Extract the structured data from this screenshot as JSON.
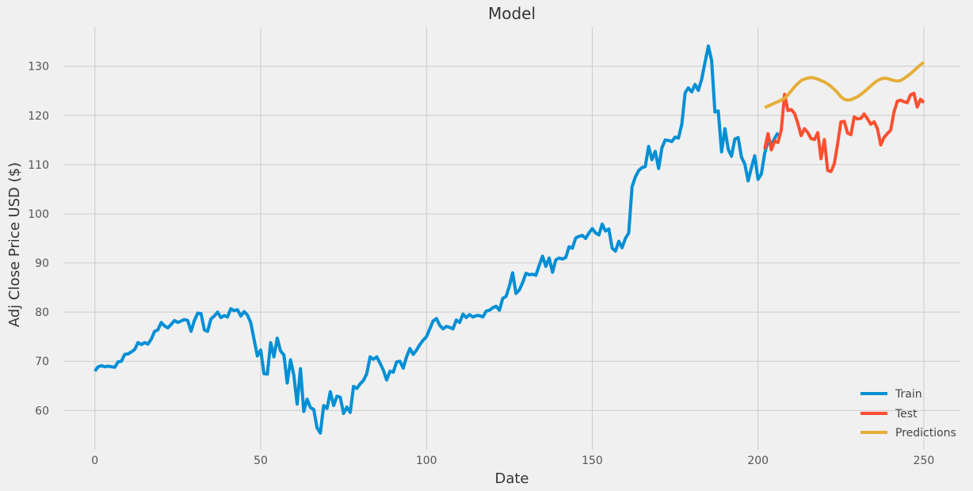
{
  "chart_data": {
    "type": "line",
    "title": "Model",
    "xlabel": "Date",
    "ylabel": "Adj Close Price USD ($)",
    "xlim": [
      -9.5,
      261
    ],
    "ylim": [
      52,
      138
    ],
    "x_ticks": [
      0,
      50,
      100,
      150,
      200,
      250
    ],
    "y_ticks": [
      60,
      70,
      80,
      90,
      100,
      110,
      120,
      130
    ],
    "x_tick_labels": [
      "0",
      "50",
      "100",
      "150",
      "200",
      "250"
    ],
    "y_tick_labels": [
      "60",
      "70",
      "80",
      "90",
      "100",
      "110",
      "120",
      "130"
    ],
    "grid": true,
    "legend_position": "bottom-right",
    "legend": [
      "Train",
      "Test",
      "Predictions"
    ],
    "series": [
      {
        "name": "Train",
        "color": "#008fd5",
        "x_start": 0,
        "values": [
          68.0,
          68.9,
          69.1,
          68.9,
          69.0,
          68.9,
          68.8,
          69.9,
          70.0,
          71.4,
          71.5,
          71.9,
          72.4,
          73.8,
          73.4,
          73.8,
          73.5,
          74.5,
          76.1,
          76.4,
          77.9,
          77.2,
          76.8,
          77.5,
          78.3,
          77.9,
          78.2,
          78.5,
          78.3,
          76.1,
          78.3,
          79.8,
          79.7,
          76.4,
          76.1,
          78.6,
          79.2,
          80.0,
          78.9,
          79.3,
          79.0,
          80.7,
          80.3,
          80.5,
          79.2,
          80.1,
          79.4,
          77.9,
          74.5,
          71.1,
          72.3,
          67.5,
          67.4,
          73.8,
          70.9,
          74.7,
          72.1,
          71.3,
          65.6,
          70.3,
          67.2,
          61.3,
          68.5,
          59.8,
          62.3,
          60.6,
          60.2,
          56.5,
          55.4,
          61.0,
          60.4,
          63.8,
          61.0,
          62.9,
          62.7,
          59.4,
          60.7,
          59.6,
          64.9,
          64.5,
          65.4,
          66.1,
          67.5,
          70.9,
          70.4,
          70.9,
          69.6,
          68.2,
          66.2,
          68.0,
          67.8,
          69.9,
          70.0,
          68.6,
          70.9,
          72.6,
          71.4,
          72.3,
          73.4,
          74.3,
          75.0,
          76.6,
          78.2,
          78.7,
          77.3,
          76.6,
          77.1,
          76.9,
          76.6,
          78.4,
          77.9,
          79.6,
          78.9,
          79.5,
          79.0,
          79.3,
          79.3,
          79.0,
          80.2,
          80.4,
          80.9,
          81.2,
          80.4,
          82.8,
          83.2,
          85.3,
          88.0,
          83.8,
          84.5,
          86.0,
          87.9,
          87.6,
          87.7,
          87.5,
          89.5,
          91.4,
          89.3,
          91.0,
          88.1,
          90.6,
          91.0,
          90.8,
          91.1,
          93.3,
          93.0,
          95.1,
          95.4,
          95.6,
          95.0,
          96.1,
          97.0,
          96.1,
          95.7,
          97.9,
          96.5,
          96.9,
          93.0,
          92.4,
          94.4,
          93.1,
          95.0,
          96.1,
          105.5,
          107.5,
          108.8,
          109.4,
          109.6,
          113.7,
          111.0,
          112.7,
          109.2,
          113.4,
          115.0,
          114.9,
          114.7,
          115.6,
          115.4,
          118.2,
          124.6,
          125.6,
          124.8,
          126.3,
          125.1,
          127.4,
          130.8,
          134.1,
          131.2,
          120.7,
          120.9,
          112.6,
          117.3,
          113.1,
          111.7,
          115.2,
          115.5,
          111.5,
          110.1,
          106.7,
          109.4,
          111.8,
          107.0,
          108.1,
          112.3,
          114.9,
          114.2,
          115.3,
          116.5
        ]
      },
      {
        "name": "Test",
        "color": "#fc4f30",
        "x_start": 202,
        "values": [
          113.1,
          116.3,
          113.0,
          114.8,
          114.5,
          117.0,
          124.3,
          121.0,
          121.2,
          120.4,
          118.4,
          115.9,
          117.3,
          116.5,
          115.3,
          115.1,
          116.5,
          111.2,
          115.1,
          108.8,
          108.6,
          110.2,
          114.3,
          118.7,
          118.8,
          116.4,
          116.1,
          119.7,
          119.3,
          119.4,
          120.3,
          119.3,
          118.2,
          118.7,
          117.3,
          114.0,
          115.5,
          116.3,
          117.0,
          120.7,
          122.9,
          123.1,
          122.8,
          122.6,
          124.2,
          124.5,
          121.7,
          123.3,
          122.6
        ]
      },
      {
        "name": "Predictions",
        "color": "#e5ae38",
        "x_start": 202,
        "values": [
          121.6,
          121.9,
          122.2,
          122.5,
          122.8,
          123.1,
          123.5,
          124.2,
          125.0,
          125.8,
          126.5,
          127.1,
          127.4,
          127.6,
          127.7,
          127.6,
          127.4,
          127.1,
          126.8,
          126.4,
          125.9,
          125.3,
          124.6,
          123.8,
          123.3,
          123.1,
          123.2,
          123.5,
          123.8,
          124.3,
          124.8,
          125.4,
          126.0,
          126.6,
          127.1,
          127.4,
          127.6,
          127.5,
          127.3,
          127.1,
          127.0,
          127.1,
          127.5,
          128.0,
          128.5,
          129.1,
          129.7,
          130.3,
          130.8
        ]
      }
    ]
  }
}
